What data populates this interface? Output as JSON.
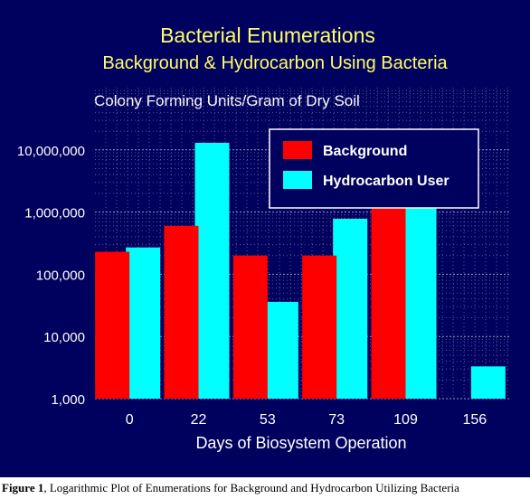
{
  "chart_data": {
    "type": "bar",
    "title": "Bacterial Enumerations",
    "subtitle": "Background & Hydrocarbon Using Bacteria",
    "ylabel": "Colony Forming Units/Gram of Dry Soil",
    "xlabel": "Days of Biosystem Operation",
    "y_scale": "log",
    "ylim": [
      1000,
      100000000
    ],
    "y_ticks": [
      1000,
      10000,
      100000,
      1000000,
      10000000
    ],
    "y_tick_labels": [
      "1,000",
      "10,000",
      "100,000",
      "1,000,000",
      "10,000,000"
    ],
    "categories": [
      "0",
      "22",
      "53",
      "73",
      "109",
      "156"
    ],
    "series": [
      {
        "name": "Background",
        "color": "#ff0000",
        "values": [
          230000,
          600000,
          200000,
          200000,
          1200000,
          null
        ]
      },
      {
        "name": "Hydrocarbon User",
        "color": "#00ffff",
        "values": [
          270000,
          13000000,
          36000,
          780000,
          1200000,
          3300
        ]
      }
    ],
    "legend_position": "top-right",
    "grid": true,
    "background_color": "#00005e",
    "title_color": "#ffff66",
    "grid_color": "#5a5a8a"
  },
  "caption": {
    "label": "Figure 1",
    "text": ", Logarithmic Plot of Enumerations for Background and Hydrocarbon Utilizing Bacteria"
  }
}
